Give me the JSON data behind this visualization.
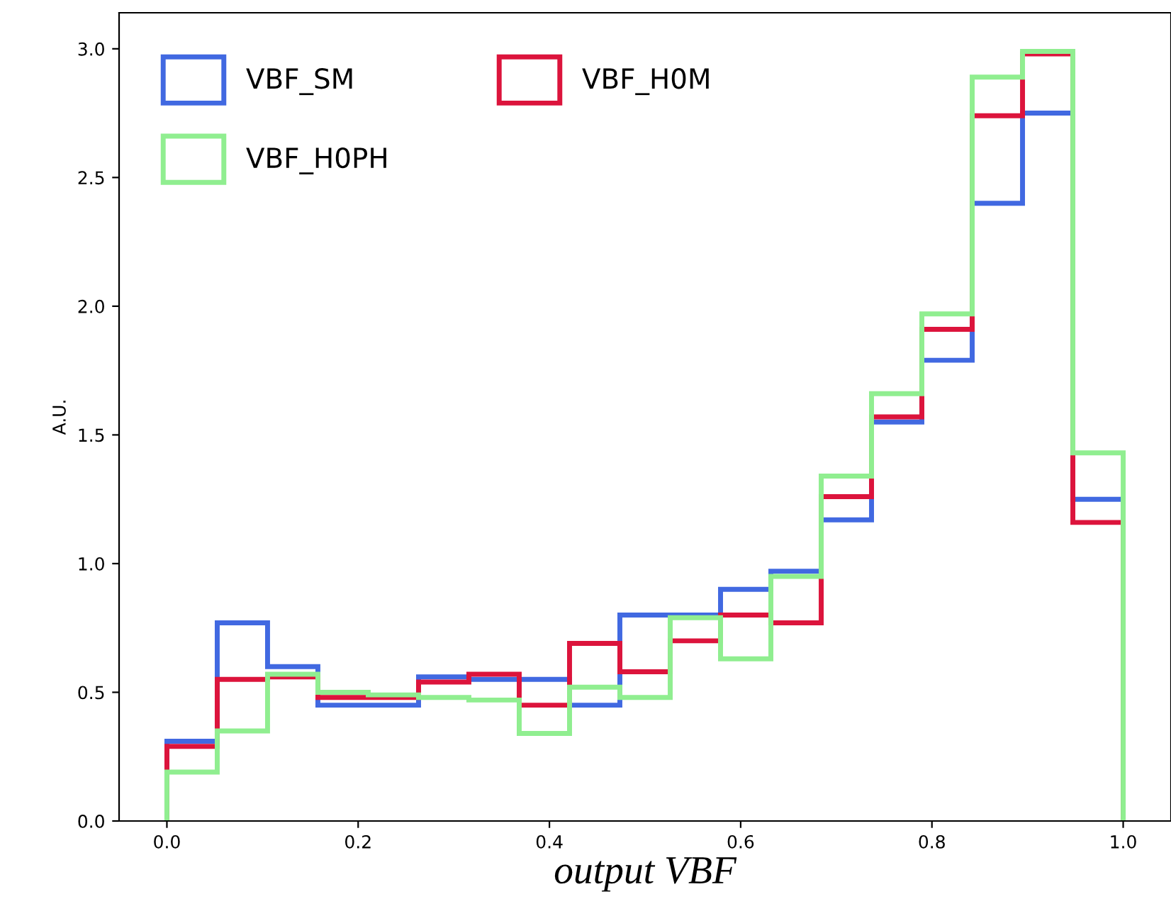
{
  "chart_data": {
    "type": "histogram",
    "xlabel": "output VBF",
    "ylabel": "A.U.",
    "bins": [
      0,
      0.05263,
      0.10526,
      0.15789,
      0.21053,
      0.26316,
      0.31579,
      0.36842,
      0.42105,
      0.47368,
      0.52632,
      0.57895,
      0.63158,
      0.68421,
      0.73684,
      0.78947,
      0.84211,
      0.89474,
      0.94737,
      1.0
    ],
    "series": [
      {
        "name": "VBF_SM",
        "color": "#4169e1",
        "values": [
          0.31,
          0.77,
          0.6,
          0.45,
          0.45,
          0.56,
          0.55,
          0.55,
          0.45,
          0.8,
          0.8,
          0.9,
          0.97,
          1.17,
          1.55,
          1.79,
          2.4,
          2.75,
          1.25
        ]
      },
      {
        "name": "VBF_H0M",
        "color": "#dc143c",
        "values": [
          0.29,
          0.55,
          0.56,
          0.48,
          0.48,
          0.54,
          0.57,
          0.45,
          0.69,
          0.58,
          0.7,
          0.8,
          0.77,
          1.26,
          1.57,
          1.91,
          2.74,
          2.98,
          1.16
        ]
      },
      {
        "name": "VBF_H0PH",
        "color": "#90ee90",
        "values": [
          0.19,
          0.35,
          0.57,
          0.5,
          0.49,
          0.48,
          0.47,
          0.34,
          0.52,
          0.48,
          0.79,
          0.63,
          0.95,
          1.34,
          1.66,
          1.97,
          2.89,
          2.99,
          1.43
        ]
      }
    ],
    "xlim": [
      -0.05,
      1.05
    ],
    "ylim": [
      0,
      3.14
    ],
    "xticks": [
      {
        "value": 0,
        "label": "0.0"
      },
      0.2,
      0.4,
      0.6,
      0.8,
      {
        "value": 1,
        "label": "1.0"
      }
    ],
    "yticks": [
      {
        "value": 0,
        "label": "0.0"
      },
      0.5,
      {
        "value": 1,
        "label": "1.0"
      },
      1.5,
      {
        "value": 2,
        "label": "2.0"
      },
      2.5,
      {
        "value": 3,
        "label": "3.0"
      }
    ],
    "grid": false,
    "legend": "top left"
  }
}
